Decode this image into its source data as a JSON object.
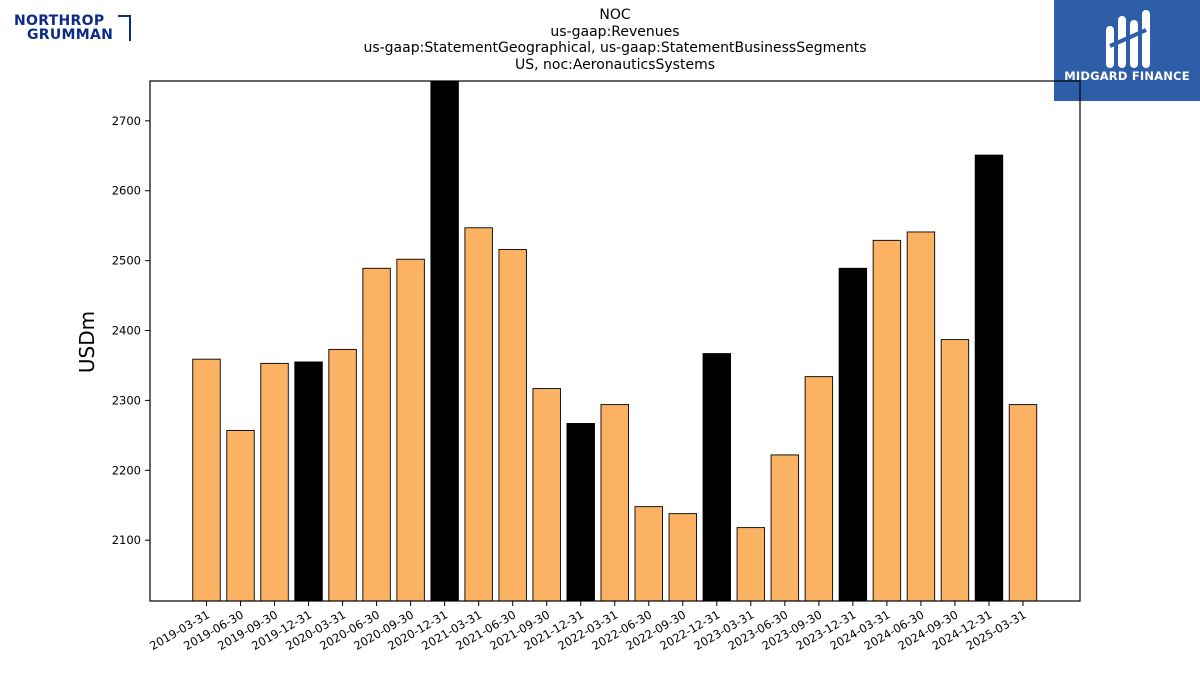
{
  "header": {
    "title_lines": [
      "NOC",
      "us-gaap:Revenues",
      "us-gaap:StatementGeographical, us-gaap:StatementBusinessSegments",
      "US, noc:AeronauticsSystems"
    ]
  },
  "logos": {
    "left": {
      "line1": "NORTHROP",
      "line2": "GRUMMAN",
      "color": "#0b2a8a"
    },
    "right": {
      "brand": "MIDGARD FINANCE",
      "background": "#2f5ea8"
    }
  },
  "chart_data": {
    "type": "bar",
    "ylabel": "USDm",
    "xlabel": "",
    "ylim": [
      2013,
      2757
    ],
    "yticks": [
      2100,
      2200,
      2300,
      2400,
      2500,
      2600,
      2700
    ],
    "grid": false,
    "colors": {
      "quarter": "#fbb263",
      "year_end": "#000000",
      "edge": "#000000"
    },
    "categories": [
      "2019-03-31",
      "2019-06-30",
      "2019-09-30",
      "2019-12-31",
      "2020-03-31",
      "2020-06-30",
      "2020-09-30",
      "2020-12-31",
      "2021-03-31",
      "2021-06-30",
      "2021-09-30",
      "2021-12-31",
      "2022-03-31",
      "2022-06-30",
      "2022-09-30",
      "2022-12-31",
      "2023-03-31",
      "2023-06-30",
      "2023-09-30",
      "2023-12-31",
      "2024-03-31",
      "2024-06-30",
      "2024-09-30",
      "2024-12-31",
      "2025-03-31"
    ],
    "values": [
      2359,
      2257,
      2353,
      2355,
      2373,
      2489,
      2502,
      2770,
      2547,
      2516,
      2317,
      2267,
      2294,
      2148,
      2138,
      2367,
      2118,
      2222,
      2334,
      2489,
      2529,
      2541,
      2387,
      2651,
      2294
    ],
    "year_end": [
      false,
      false,
      false,
      true,
      false,
      false,
      false,
      true,
      false,
      false,
      false,
      true,
      false,
      false,
      false,
      true,
      false,
      false,
      false,
      true,
      false,
      false,
      false,
      true,
      false
    ]
  }
}
